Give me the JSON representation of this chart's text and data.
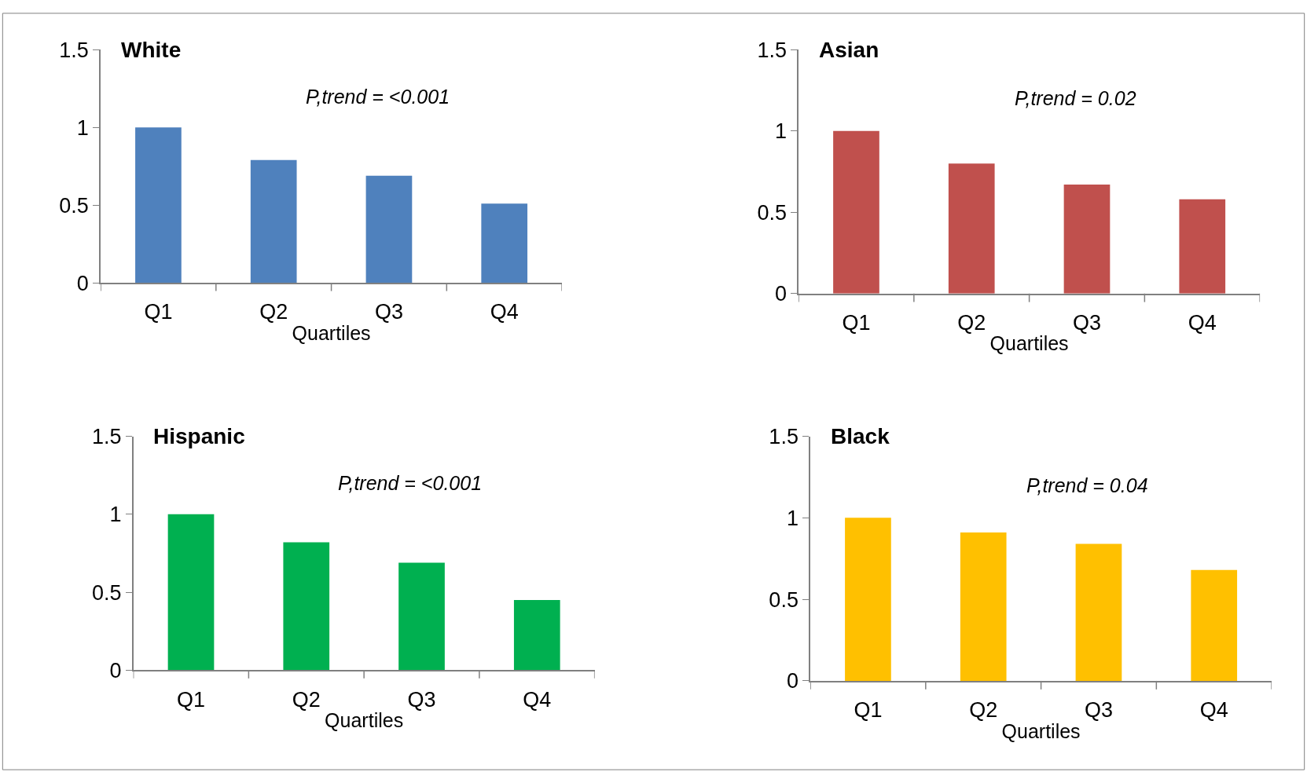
{
  "chart_data": [
    {
      "type": "bar",
      "title": "White",
      "xlabel": "Quartiles",
      "annotations": [
        "P,trend = <0.001"
      ],
      "categories": [
        "Q1",
        "Q2",
        "Q3",
        "Q4"
      ],
      "values": [
        1,
        0.79,
        0.69,
        0.51
      ],
      "color": "#4f81bd",
      "ylim": [
        0,
        1.5
      ],
      "yticks": [
        0,
        0.5,
        1,
        1.5
      ]
    },
    {
      "type": "bar",
      "title": "Asian",
      "xlabel": "Quartiles",
      "annotations": [
        "P,trend = 0.02"
      ],
      "categories": [
        "Q1",
        "Q2",
        "Q3",
        "Q4"
      ],
      "values": [
        1,
        0.8,
        0.67,
        0.58
      ],
      "color": "#c0504d",
      "ylim": [
        0,
        1.5
      ],
      "yticks": [
        0,
        0.5,
        1,
        1.5
      ]
    },
    {
      "type": "bar",
      "title": "Hispanic",
      "xlabel": "Quartiles",
      "annotations": [
        "P,trend = <0.001"
      ],
      "categories": [
        "Q1",
        "Q2",
        "Q3",
        "Q4"
      ],
      "values": [
        1,
        0.82,
        0.69,
        0.45
      ],
      "color": "#00b050",
      "ylim": [
        0,
        1.5
      ],
      "yticks": [
        0,
        0.5,
        1,
        1.5
      ]
    },
    {
      "type": "bar",
      "title": "Black",
      "xlabel": "Quartiles",
      "annotations": [
        "P,trend = 0.04"
      ],
      "categories": [
        "Q1",
        "Q2",
        "Q3",
        "Q4"
      ],
      "values": [
        1,
        0.91,
        0.84,
        0.68
      ],
      "color": "#ffc000",
      "ylim": [
        0,
        1.5
      ],
      "yticks": [
        0,
        0.5,
        1,
        1.5
      ]
    }
  ]
}
